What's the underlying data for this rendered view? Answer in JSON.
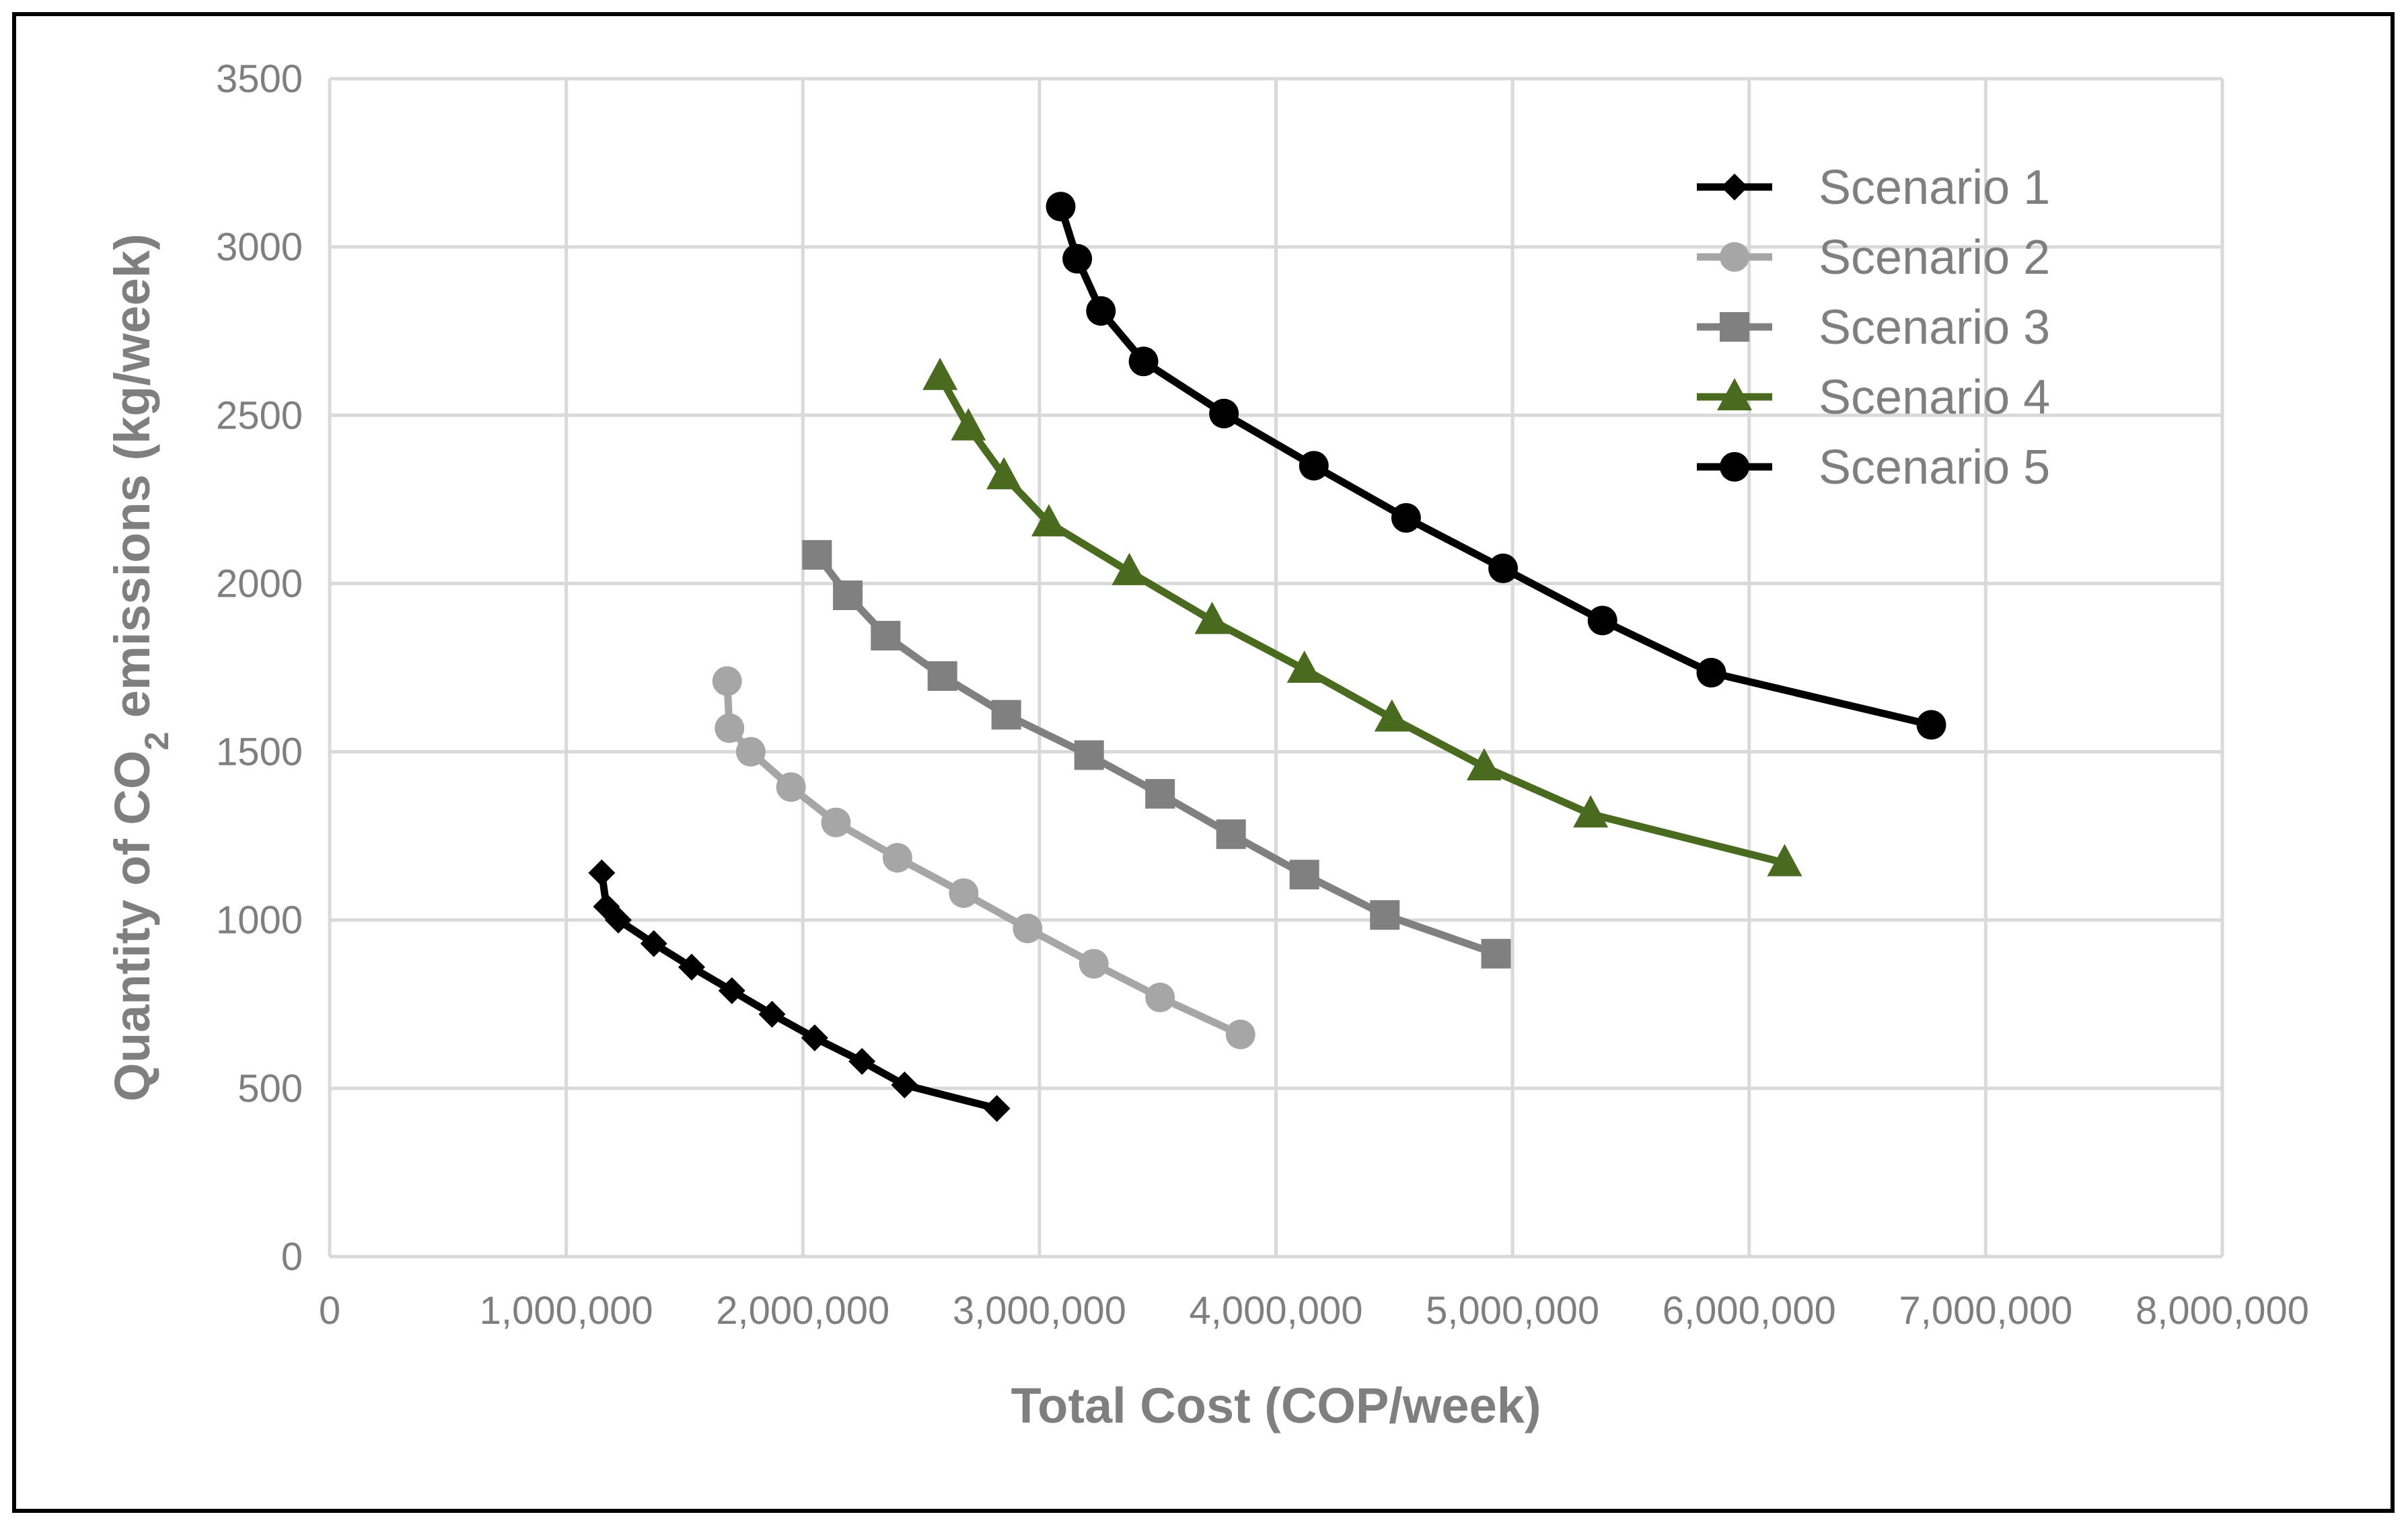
{
  "chart_data": {
    "type": "line",
    "title": "",
    "xlabel": "Total Cost (COP/week)",
    "ylabel_parts": [
      "Quantity of CO",
      "2",
      " emissions (kg/week)"
    ],
    "xlim": [
      0,
      8000000
    ],
    "ylim": [
      0,
      3500
    ],
    "x_ticks": [
      0,
      1000000,
      2000000,
      3000000,
      4000000,
      5000000,
      6000000,
      7000000,
      8000000
    ],
    "x_tick_labels": [
      "0",
      "1,000,000",
      "2,000,000",
      "3,000,000",
      "4,000,000",
      "5,000,000",
      "6,000,000",
      "7,000,000",
      "8,000,000"
    ],
    "y_ticks": [
      0,
      500,
      1000,
      1500,
      2000,
      2500,
      3000,
      3500
    ],
    "y_tick_labels": [
      "0",
      "500",
      "1000",
      "1500",
      "2000",
      "2500",
      "3000",
      "3500"
    ],
    "grid": true,
    "legend_position": "top-right",
    "series": [
      {
        "name": "Scenario 1",
        "color": "#000000",
        "marker": "diamond",
        "points": [
          [
            1150000,
            1140
          ],
          [
            1170000,
            1040
          ],
          [
            1220000,
            1000
          ],
          [
            1370000,
            930
          ],
          [
            1530000,
            860
          ],
          [
            1700000,
            790
          ],
          [
            1870000,
            720
          ],
          [
            2050000,
            650
          ],
          [
            2250000,
            580
          ],
          [
            2430000,
            510
          ],
          [
            2820000,
            440
          ]
        ]
      },
      {
        "name": "Scenario 2",
        "color": "#a6a6a6",
        "marker": "circle",
        "points": [
          [
            1680000,
            1710
          ],
          [
            1690000,
            1570
          ],
          [
            1780000,
            1500
          ],
          [
            1950000,
            1395
          ],
          [
            2140000,
            1290
          ],
          [
            2400000,
            1185
          ],
          [
            2680000,
            1080
          ],
          [
            2950000,
            975
          ],
          [
            3230000,
            870
          ],
          [
            3510000,
            770
          ],
          [
            3850000,
            660
          ]
        ]
      },
      {
        "name": "Scenario 3",
        "color": "#808080",
        "marker": "square",
        "points": [
          [
            2060000,
            2085
          ],
          [
            2190000,
            1965
          ],
          [
            2350000,
            1845
          ],
          [
            2590000,
            1725
          ],
          [
            2860000,
            1610
          ],
          [
            3210000,
            1490
          ],
          [
            3510000,
            1375
          ],
          [
            3810000,
            1255
          ],
          [
            4120000,
            1135
          ],
          [
            4460000,
            1015
          ],
          [
            4930000,
            900
          ]
        ]
      },
      {
        "name": "Scenario 4",
        "color": "#4a6b1f",
        "marker": "triangle",
        "points": [
          [
            2580000,
            2615
          ],
          [
            2700000,
            2465
          ],
          [
            2850000,
            2320
          ],
          [
            3040000,
            2180
          ],
          [
            3380000,
            2035
          ],
          [
            3730000,
            1890
          ],
          [
            4120000,
            1745
          ],
          [
            4490000,
            1600
          ],
          [
            4880000,
            1455
          ],
          [
            5330000,
            1315
          ],
          [
            6150000,
            1170
          ]
        ]
      },
      {
        "name": "Scenario 5",
        "color": "#000000",
        "marker": "circle",
        "points": [
          [
            3090000,
            3120
          ],
          [
            3160000,
            2965
          ],
          [
            3260000,
            2810
          ],
          [
            3440000,
            2660
          ],
          [
            3780000,
            2505
          ],
          [
            4160000,
            2350
          ],
          [
            4550000,
            2195
          ],
          [
            4960000,
            2045
          ],
          [
            5380000,
            1890
          ],
          [
            5840000,
            1735
          ],
          [
            6770000,
            1580
          ]
        ]
      }
    ]
  }
}
